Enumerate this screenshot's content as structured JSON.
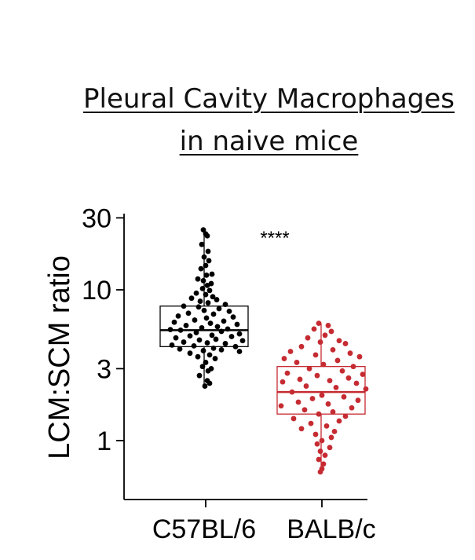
{
  "title": {
    "line1": "Pleural Cavity Macrophages",
    "line2": "in naive mice"
  },
  "chart_data": {
    "type": "box",
    "ylabel": "LCM:SCM ratio",
    "yscale": "log",
    "ylim": [
      0.55,
      30
    ],
    "yticks": [
      1,
      3,
      10,
      30
    ],
    "ytick_labels": [
      "1",
      "3",
      "10",
      "30"
    ],
    "categories": [
      "C57BL/6",
      "BALB/c"
    ],
    "significance": "****",
    "colors": {
      "C57BL/6": "#000000",
      "BALB/c": "#c62b32"
    },
    "groups": [
      {
        "name": "C57BL/6",
        "box": {
          "whisker_low": 2.3,
          "q1": 4.2,
          "median": 5.4,
          "q3": 7.8,
          "whisker_high": 25
        },
        "points": [
          25,
          23.5,
          22.8,
          20,
          18,
          16.5,
          15.6,
          14.5,
          13.8,
          12.7,
          12.5,
          11.8,
          11.5,
          11,
          10.7,
          10.2,
          9.9,
          9.5,
          9.3,
          9,
          8.8,
          8.6,
          8.4,
          8.2,
          8,
          7.8,
          7.7,
          7.5,
          7.3,
          7.2,
          7,
          6.9,
          6.7,
          6.6,
          6.5,
          6.3,
          6.2,
          6.1,
          6,
          5.9,
          5.8,
          5.7,
          5.6,
          5.5,
          5.45,
          5.4,
          5.3,
          5.2,
          5.1,
          5,
          4.95,
          4.9,
          4.8,
          4.7,
          4.65,
          4.6,
          4.5,
          4.45,
          4.4,
          4.3,
          4.25,
          4.2,
          4.1,
          4.05,
          4,
          3.95,
          3.9,
          3.8,
          3.7,
          3.6,
          3.5,
          3.3,
          3.1,
          3,
          2.9,
          2.7,
          2.5,
          2.4,
          2.3
        ],
        "x_offsets": [
          -3,
          0,
          2,
          -5,
          3,
          -2,
          4,
          0,
          -6,
          8,
          1,
          -10,
          -3,
          7,
          2,
          -4,
          5,
          -12,
          0,
          9,
          -18,
          14,
          -7,
          3,
          25,
          -28,
          -9,
          17,
          -2,
          30,
          -22,
          10,
          -35,
          35,
          1,
          -14,
          23,
          -40,
          6,
          40,
          -25,
          15,
          -5,
          28,
          -45,
          -32,
          20,
          -12,
          43,
          8,
          -20,
          33,
          -38,
          13,
          -8,
          47,
          -28,
          2,
          25,
          -43,
          -15,
          38,
          10,
          -33,
          20,
          -3,
          43,
          -20,
          5,
          -10,
          12,
          0,
          -4,
          7,
          3,
          -8,
          2,
          5,
          -1
        ]
      },
      {
        "name": "BALB/c",
        "box": {
          "whisker_low": 0.62,
          "q1": 1.5,
          "median": 2.1,
          "q3": 3.1,
          "whisker_high": 6.0
        },
        "points": [
          6,
          5.8,
          5.5,
          5.3,
          5,
          4.8,
          4.6,
          4.5,
          4.4,
          4.2,
          4,
          3.9,
          3.8,
          3.7,
          3.6,
          3.5,
          3.4,
          3.3,
          3.2,
          3.1,
          3,
          2.9,
          2.8,
          2.75,
          2.7,
          2.6,
          2.55,
          2.5,
          2.45,
          2.4,
          2.3,
          2.25,
          2.2,
          2.1,
          2,
          1.95,
          1.9,
          1.85,
          1.8,
          1.75,
          1.7,
          1.65,
          1.6,
          1.55,
          1.5,
          1.45,
          1.4,
          1.35,
          1.3,
          1.25,
          1.2,
          1.15,
          1.1,
          1.05,
          1,
          0.95,
          0.9,
          0.85,
          0.8,
          0.75,
          0.7,
          0.65,
          0.62
        ],
        "x_offsets": [
          -4,
          8,
          -10,
          12,
          4,
          -18,
          22,
          -2,
          30,
          -26,
          14,
          -40,
          36,
          -8,
          48,
          -48,
          20,
          -32,
          2,
          40,
          -16,
          26,
          -44,
          52,
          -6,
          34,
          -28,
          10,
          -50,
          44,
          -20,
          18,
          56,
          -38,
          0,
          28,
          -12,
          46,
          -30,
          8,
          -52,
          38,
          -22,
          14,
          -4,
          30,
          -36,
          22,
          -14,
          6,
          -26,
          16,
          -8,
          12,
          0,
          -6,
          10,
          -2,
          4,
          -4,
          2,
          0,
          -2
        ]
      }
    ]
  }
}
